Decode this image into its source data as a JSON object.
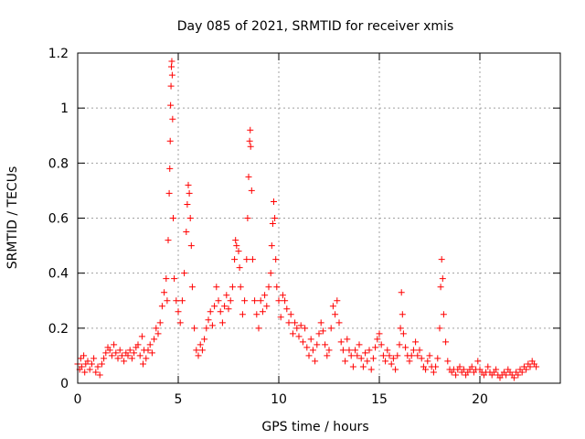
{
  "chart_data": {
    "type": "scatter",
    "title": "Day 085 of 2021, SRMTID for receiver xmis",
    "xlabel": "GPS time / hours",
    "ylabel": "SRMTID / TECUs",
    "xlim": [
      0,
      24
    ],
    "ylim": [
      0,
      1.2
    ],
    "xticks": [
      0,
      5,
      10,
      15,
      20
    ],
    "xtick_labels": [
      "0",
      "5",
      "10",
      "15",
      "20"
    ],
    "yticks": [
      0,
      0.2,
      0.4,
      0.6,
      0.8,
      1,
      1.2
    ],
    "ytick_labels": [
      "0",
      "0.2",
      "0.4",
      "0.6",
      "0.8",
      "1",
      "1.2"
    ],
    "grid": true,
    "marker": "+",
    "color": "#ff0000",
    "series": [
      {
        "name": "SRMTID",
        "points": [
          [
            0.0,
            0.07
          ],
          [
            0.1,
            0.05
          ],
          [
            0.15,
            0.09
          ],
          [
            0.2,
            0.06
          ],
          [
            0.3,
            0.1
          ],
          [
            0.35,
            0.04
          ],
          [
            0.4,
            0.07
          ],
          [
            0.5,
            0.08
          ],
          [
            0.6,
            0.05
          ],
          [
            0.7,
            0.07
          ],
          [
            0.8,
            0.09
          ],
          [
            0.9,
            0.04
          ],
          [
            1.0,
            0.06
          ],
          [
            1.1,
            0.03
          ],
          [
            1.2,
            0.07
          ],
          [
            1.3,
            0.09
          ],
          [
            1.4,
            0.11
          ],
          [
            1.5,
            0.13
          ],
          [
            1.6,
            0.12
          ],
          [
            1.7,
            0.1
          ],
          [
            1.8,
            0.14
          ],
          [
            1.9,
            0.11
          ],
          [
            2.0,
            0.09
          ],
          [
            2.1,
            0.12
          ],
          [
            2.2,
            0.1
          ],
          [
            2.3,
            0.08
          ],
          [
            2.4,
            0.11
          ],
          [
            2.5,
            0.1
          ],
          [
            2.6,
            0.12
          ],
          [
            2.7,
            0.09
          ],
          [
            2.8,
            0.11
          ],
          [
            2.9,
            0.13
          ],
          [
            3.0,
            0.14
          ],
          [
            3.1,
            0.1
          ],
          [
            3.2,
            0.17
          ],
          [
            3.25,
            0.07
          ],
          [
            3.3,
            0.12
          ],
          [
            3.4,
            0.09
          ],
          [
            3.5,
            0.12
          ],
          [
            3.6,
            0.14
          ],
          [
            3.7,
            0.11
          ],
          [
            3.8,
            0.16
          ],
          [
            3.9,
            0.2
          ],
          [
            4.0,
            0.18
          ],
          [
            4.1,
            0.22
          ],
          [
            4.2,
            0.28
          ],
          [
            4.3,
            0.33
          ],
          [
            4.4,
            0.38
          ],
          [
            4.45,
            0.3
          ],
          [
            4.5,
            0.52
          ],
          [
            4.55,
            0.69
          ],
          [
            4.58,
            0.78
          ],
          [
            4.6,
            0.88
          ],
          [
            4.62,
            1.01
          ],
          [
            4.64,
            1.08
          ],
          [
            4.66,
            1.15
          ],
          [
            4.68,
            1.17
          ],
          [
            4.7,
            1.12
          ],
          [
            4.72,
            0.96
          ],
          [
            4.75,
            0.6
          ],
          [
            4.8,
            0.38
          ],
          [
            4.9,
            0.3
          ],
          [
            5.0,
            0.26
          ],
          [
            5.1,
            0.22
          ],
          [
            5.2,
            0.3
          ],
          [
            5.3,
            0.4
          ],
          [
            5.4,
            0.55
          ],
          [
            5.45,
            0.65
          ],
          [
            5.5,
            0.72
          ],
          [
            5.55,
            0.69
          ],
          [
            5.6,
            0.6
          ],
          [
            5.65,
            0.5
          ],
          [
            5.7,
            0.35
          ],
          [
            5.8,
            0.2
          ],
          [
            5.9,
            0.12
          ],
          [
            6.0,
            0.1
          ],
          [
            6.1,
            0.14
          ],
          [
            6.2,
            0.12
          ],
          [
            6.3,
            0.16
          ],
          [
            6.4,
            0.2
          ],
          [
            6.5,
            0.23
          ],
          [
            6.6,
            0.26
          ],
          [
            6.7,
            0.21
          ],
          [
            6.8,
            0.28
          ],
          [
            6.9,
            0.35
          ],
          [
            7.0,
            0.3
          ],
          [
            7.1,
            0.26
          ],
          [
            7.2,
            0.22
          ],
          [
            7.3,
            0.28
          ],
          [
            7.4,
            0.32
          ],
          [
            7.5,
            0.27
          ],
          [
            7.6,
            0.3
          ],
          [
            7.7,
            0.35
          ],
          [
            7.8,
            0.45
          ],
          [
            7.85,
            0.52
          ],
          [
            7.9,
            0.5
          ],
          [
            8.0,
            0.48
          ],
          [
            8.05,
            0.42
          ],
          [
            8.1,
            0.35
          ],
          [
            8.2,
            0.25
          ],
          [
            8.3,
            0.3
          ],
          [
            8.4,
            0.45
          ],
          [
            8.45,
            0.6
          ],
          [
            8.5,
            0.75
          ],
          [
            8.55,
            0.88
          ],
          [
            8.58,
            0.92
          ],
          [
            8.6,
            0.86
          ],
          [
            8.65,
            0.7
          ],
          [
            8.7,
            0.45
          ],
          [
            8.8,
            0.3
          ],
          [
            8.9,
            0.25
          ],
          [
            9.0,
            0.2
          ],
          [
            9.1,
            0.3
          ],
          [
            9.2,
            0.26
          ],
          [
            9.3,
            0.32
          ],
          [
            9.4,
            0.28
          ],
          [
            9.5,
            0.35
          ],
          [
            9.6,
            0.4
          ],
          [
            9.65,
            0.5
          ],
          [
            9.7,
            0.58
          ],
          [
            9.75,
            0.66
          ],
          [
            9.8,
            0.6
          ],
          [
            9.85,
            0.45
          ],
          [
            9.9,
            0.35
          ],
          [
            10.0,
            0.3
          ],
          [
            10.1,
            0.24
          ],
          [
            10.2,
            0.32
          ],
          [
            10.3,
            0.3
          ],
          [
            10.4,
            0.27
          ],
          [
            10.5,
            0.22
          ],
          [
            10.6,
            0.25
          ],
          [
            10.7,
            0.18
          ],
          [
            10.8,
            0.22
          ],
          [
            10.9,
            0.2
          ],
          [
            11.0,
            0.17
          ],
          [
            11.1,
            0.21
          ],
          [
            11.2,
            0.15
          ],
          [
            11.3,
            0.2
          ],
          [
            11.4,
            0.13
          ],
          [
            11.5,
            0.1
          ],
          [
            11.6,
            0.16
          ],
          [
            11.7,
            0.12
          ],
          [
            11.8,
            0.08
          ],
          [
            11.9,
            0.14
          ],
          [
            12.0,
            0.18
          ],
          [
            12.1,
            0.22
          ],
          [
            12.2,
            0.19
          ],
          [
            12.3,
            0.14
          ],
          [
            12.4,
            0.1
          ],
          [
            12.5,
            0.12
          ],
          [
            12.6,
            0.2
          ],
          [
            12.7,
            0.28
          ],
          [
            12.8,
            0.25
          ],
          [
            12.9,
            0.3
          ],
          [
            13.0,
            0.22
          ],
          [
            13.1,
            0.15
          ],
          [
            13.2,
            0.12
          ],
          [
            13.3,
            0.08
          ],
          [
            13.4,
            0.16
          ],
          [
            13.5,
            0.12
          ],
          [
            13.6,
            0.1
          ],
          [
            13.7,
            0.06
          ],
          [
            13.8,
            0.12
          ],
          [
            13.9,
            0.1
          ],
          [
            14.0,
            0.14
          ],
          [
            14.1,
            0.09
          ],
          [
            14.2,
            0.06
          ],
          [
            14.3,
            0.11
          ],
          [
            14.4,
            0.08
          ],
          [
            14.5,
            0.12
          ],
          [
            14.6,
            0.05
          ],
          [
            14.7,
            0.09
          ],
          [
            14.8,
            0.13
          ],
          [
            14.9,
            0.16
          ],
          [
            15.0,
            0.18
          ],
          [
            15.1,
            0.14
          ],
          [
            15.2,
            0.1
          ],
          [
            15.3,
            0.08
          ],
          [
            15.4,
            0.12
          ],
          [
            15.5,
            0.1
          ],
          [
            15.6,
            0.07
          ],
          [
            15.7,
            0.09
          ],
          [
            15.8,
            0.05
          ],
          [
            15.9,
            0.1
          ],
          [
            16.0,
            0.14
          ],
          [
            16.05,
            0.2
          ],
          [
            16.1,
            0.33
          ],
          [
            16.15,
            0.25
          ],
          [
            16.2,
            0.18
          ],
          [
            16.3,
            0.13
          ],
          [
            16.4,
            0.1
          ],
          [
            16.5,
            0.08
          ],
          [
            16.6,
            0.1
          ],
          [
            16.7,
            0.12
          ],
          [
            16.8,
            0.15
          ],
          [
            16.9,
            0.1
          ],
          [
            17.0,
            0.12
          ],
          [
            17.1,
            0.09
          ],
          [
            17.2,
            0.06
          ],
          [
            17.3,
            0.05
          ],
          [
            17.4,
            0.08
          ],
          [
            17.5,
            0.1
          ],
          [
            17.6,
            0.06
          ],
          [
            17.7,
            0.04
          ],
          [
            17.8,
            0.06
          ],
          [
            17.9,
            0.09
          ],
          [
            18.0,
            0.2
          ],
          [
            18.05,
            0.35
          ],
          [
            18.1,
            0.45
          ],
          [
            18.15,
            0.38
          ],
          [
            18.2,
            0.25
          ],
          [
            18.3,
            0.15
          ],
          [
            18.4,
            0.08
          ],
          [
            18.5,
            0.05
          ],
          [
            18.6,
            0.04
          ],
          [
            18.7,
            0.05
          ],
          [
            18.8,
            0.03
          ],
          [
            18.9,
            0.05
          ],
          [
            19.0,
            0.06
          ],
          [
            19.1,
            0.04
          ],
          [
            19.2,
            0.05
          ],
          [
            19.3,
            0.03
          ],
          [
            19.4,
            0.04
          ],
          [
            19.5,
            0.05
          ],
          [
            19.6,
            0.06
          ],
          [
            19.7,
            0.04
          ],
          [
            19.8,
            0.05
          ],
          [
            19.9,
            0.08
          ],
          [
            20.0,
            0.05
          ],
          [
            20.1,
            0.04
          ],
          [
            20.2,
            0.03
          ],
          [
            20.3,
            0.04
          ],
          [
            20.4,
            0.06
          ],
          [
            20.5,
            0.04
          ],
          [
            20.6,
            0.03
          ],
          [
            20.7,
            0.04
          ],
          [
            20.8,
            0.05
          ],
          [
            20.9,
            0.03
          ],
          [
            21.0,
            0.02
          ],
          [
            21.1,
            0.03
          ],
          [
            21.2,
            0.04
          ],
          [
            21.3,
            0.03
          ],
          [
            21.4,
            0.05
          ],
          [
            21.5,
            0.04
          ],
          [
            21.6,
            0.03
          ],
          [
            21.7,
            0.02
          ],
          [
            21.8,
            0.04
          ],
          [
            21.9,
            0.03
          ],
          [
            22.0,
            0.05
          ],
          [
            22.1,
            0.04
          ],
          [
            22.2,
            0.06
          ],
          [
            22.3,
            0.05
          ],
          [
            22.4,
            0.07
          ],
          [
            22.5,
            0.06
          ],
          [
            22.6,
            0.08
          ],
          [
            22.7,
            0.07
          ],
          [
            22.8,
            0.06
          ]
        ]
      }
    ]
  }
}
